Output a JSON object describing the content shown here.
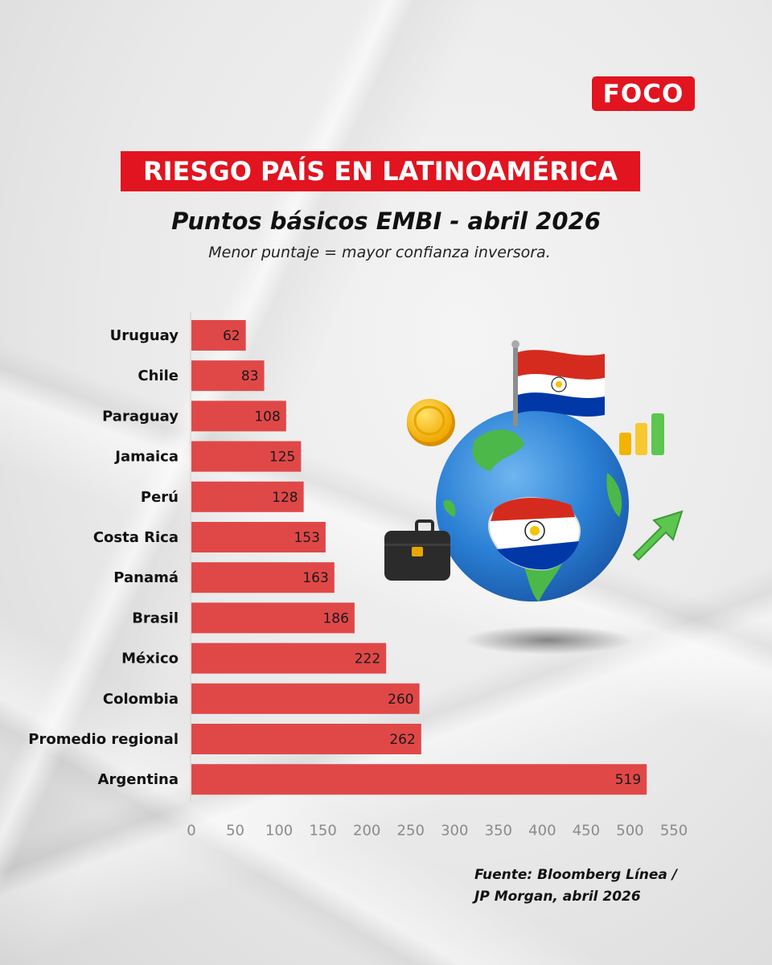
{
  "brand": {
    "logo_text": "FOCO",
    "color": "#e1141f"
  },
  "header": {
    "title": "RIESGO PAÍS EN LATINOAMÉRICA",
    "subtitle": "Puntos básicos EMBI - abril 2026",
    "note": "Menor puntaje = mayor confianza inversora."
  },
  "chart_data": {
    "type": "bar",
    "orientation": "horizontal",
    "categories": [
      "Uruguay",
      "Chile",
      "Paraguay",
      "Jamaica",
      "Perú",
      "Costa Rica",
      "Panamá",
      "Brasil",
      "México",
      "Colombia",
      "Promedio regional",
      "Argentina"
    ],
    "values": [
      62,
      83,
      108,
      125,
      128,
      153,
      163,
      186,
      222,
      260,
      262,
      519
    ],
    "xlim": [
      0,
      550
    ],
    "xticks": [
      0,
      50,
      100,
      150,
      200,
      250,
      300,
      350,
      400,
      450,
      500,
      550
    ],
    "bar_color": "#e04848",
    "grid": false,
    "data_labels": true
  },
  "illustration": {
    "icons": [
      "globe-icon",
      "paraguay-flag-icon",
      "coin-icon",
      "bar-growth-icon",
      "arrow-up-icon",
      "briefcase-icon"
    ]
  },
  "footer": {
    "source_line1": "Fuente: Bloomberg Línea /",
    "source_line2": "JP Morgan, abril 2026"
  }
}
